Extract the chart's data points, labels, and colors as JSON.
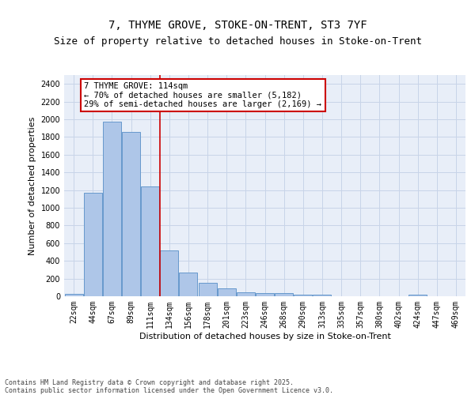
{
  "title_line1": "7, THYME GROVE, STOKE-ON-TRENT, ST3 7YF",
  "title_line2": "Size of property relative to detached houses in Stoke-on-Trent",
  "xlabel": "Distribution of detached houses by size in Stoke-on-Trent",
  "ylabel": "Number of detached properties",
  "categories": [
    "22sqm",
    "44sqm",
    "67sqm",
    "89sqm",
    "111sqm",
    "134sqm",
    "156sqm",
    "178sqm",
    "201sqm",
    "223sqm",
    "246sqm",
    "268sqm",
    "290sqm",
    "313sqm",
    "335sqm",
    "357sqm",
    "380sqm",
    "402sqm",
    "424sqm",
    "447sqm",
    "469sqm"
  ],
  "values": [
    28,
    1170,
    1970,
    1855,
    1240,
    515,
    270,
    155,
    90,
    48,
    40,
    35,
    22,
    15,
    0,
    0,
    0,
    0,
    15,
    0,
    0
  ],
  "bar_color": "#aec6e8",
  "bar_edge_color": "#6699cc",
  "vline_x": 4.5,
  "vline_color": "#cc0000",
  "annotation_text": "7 THYME GROVE: 114sqm\n← 70% of detached houses are smaller (5,182)\n29% of semi-detached houses are larger (2,169) →",
  "annotation_box_color": "#cc0000",
  "ylim": [
    0,
    2500
  ],
  "yticks": [
    0,
    200,
    400,
    600,
    800,
    1000,
    1200,
    1400,
    1600,
    1800,
    2000,
    2200,
    2400
  ],
  "grid_color": "#c8d4e8",
  "background_color": "#e8eef8",
  "footer_text": "Contains HM Land Registry data © Crown copyright and database right 2025.\nContains public sector information licensed under the Open Government Licence v3.0.",
  "title_fontsize": 10,
  "subtitle_fontsize": 9,
  "axis_label_fontsize": 8,
  "tick_fontsize": 7,
  "annotation_fontsize": 7.5
}
